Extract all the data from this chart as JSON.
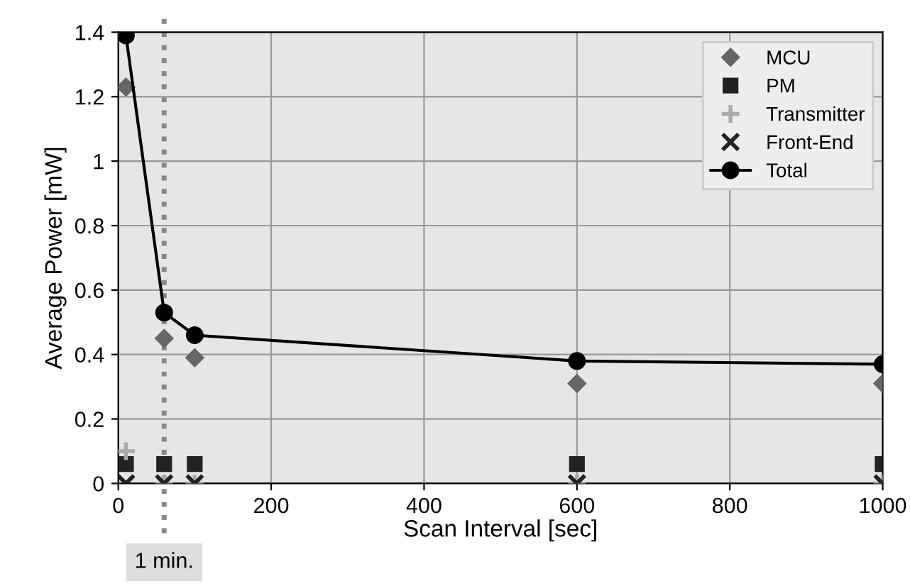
{
  "chart_data": {
    "type": "line",
    "xlabel": "Scan Interval [sec]",
    "ylabel": "Average Power [mW]",
    "x": [
      10,
      60,
      100,
      600,
      1000
    ],
    "series": [
      {
        "name": "MCU",
        "type": "scatter",
        "marker": "diamond",
        "color": "#666666",
        "values": [
          1.23,
          0.45,
          0.39,
          0.31,
          0.31
        ]
      },
      {
        "name": "PM",
        "type": "scatter",
        "marker": "square",
        "color": "#222222",
        "values": [
          0.06,
          0.06,
          0.06,
          0.06,
          0.06
        ]
      },
      {
        "name": "Transmitter",
        "type": "scatter",
        "marker": "cross",
        "color": "#aaaaaa",
        "values": [
          0.1,
          0,
          0,
          0,
          0
        ]
      },
      {
        "name": "Front-End",
        "type": "scatter",
        "marker": "x",
        "color": "#222222",
        "values": [
          0,
          0,
          0,
          0,
          0
        ]
      },
      {
        "name": "Total",
        "marker": "circle",
        "line_style": "solid",
        "color": "#000000",
        "values": [
          1.39,
          0.53,
          0.46,
          0.38,
          0.37
        ]
      }
    ],
    "xlim": [
      0,
      1000
    ],
    "xticks": [
      0,
      200,
      400,
      600,
      800,
      1000
    ],
    "ylim": [
      0,
      1.4
    ],
    "yticks": [
      0,
      0.2,
      0.4,
      0.6,
      0.8,
      1,
      1.2,
      1.4
    ],
    "ref_lines": [
      {
        "axis": "x",
        "value": 60,
        "label": "1 min.",
        "color": "#888888",
        "line_style": "dotted"
      }
    ],
    "grid": true,
    "legend": "top right"
  }
}
